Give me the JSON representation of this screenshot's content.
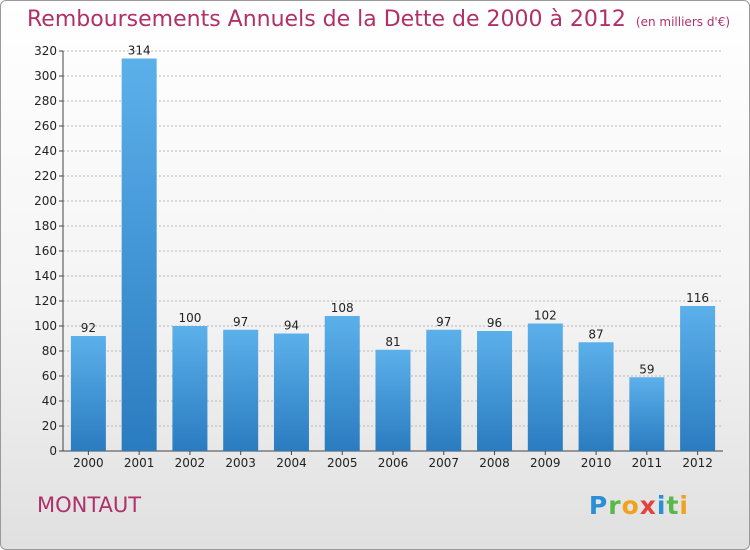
{
  "header": {
    "title": "Remboursements Annuels de la Dette de 2000 à 2012",
    "subtitle": "(en milliers d'€)"
  },
  "commune": "MONTAUT",
  "logo": {
    "text": "Proxiti",
    "letters": [
      {
        "c": "P",
        "color": "#2a8fd6"
      },
      {
        "c": "r",
        "color": "#58b84a"
      },
      {
        "c": "o",
        "color": "#f0a21e"
      },
      {
        "c": "x",
        "color": "#e0443b"
      },
      {
        "c": "i",
        "color": "#2a8fd6"
      },
      {
        "c": "t",
        "color": "#58b84a"
      },
      {
        "c": "i",
        "color": "#f0a21e"
      }
    ]
  },
  "colors": {
    "title": "#b0306a",
    "bar_light": "#5cb0ea",
    "bar_dark": "#2a7cc0",
    "grid": "#b8b8b8"
  },
  "chart_data": {
    "type": "bar",
    "title": "Remboursements Annuels de la Dette de 2000 à 2012",
    "subtitle": "(en milliers d'€)",
    "categories": [
      "2000",
      "2001",
      "2002",
      "2003",
      "2004",
      "2005",
      "2006",
      "2007",
      "2008",
      "2009",
      "2010",
      "2011",
      "2012"
    ],
    "values": [
      92,
      314,
      100,
      97,
      94,
      108,
      81,
      97,
      96,
      102,
      87,
      59,
      116
    ],
    "value_labels": [
      "92",
      "314",
      "100",
      "97",
      "94",
      "108",
      "81",
      "97",
      "96",
      "102",
      "87",
      "59",
      "116"
    ],
    "ylim": [
      0,
      320
    ],
    "yticks": [
      "0",
      "20",
      "40",
      "60",
      "80",
      "100",
      "120",
      "140",
      "160",
      "180",
      "200",
      "220",
      "240",
      "260",
      "280",
      "300",
      "320"
    ],
    "grid": true,
    "xlabel": "",
    "ylabel": ""
  }
}
